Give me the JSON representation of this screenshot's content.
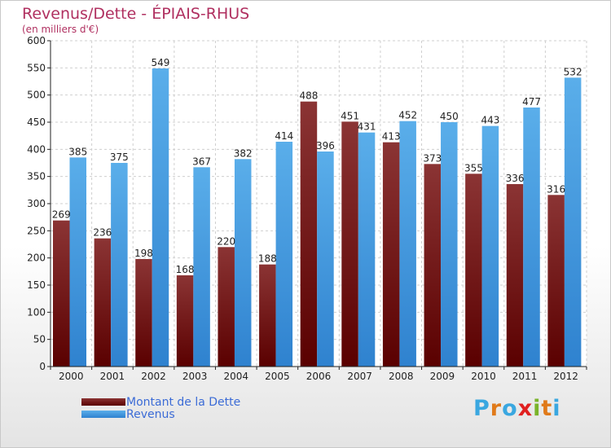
{
  "title": "Revenus/Dette - ÉPIAIS-RHUS",
  "subtitle": "(en milliers d'€)",
  "colors": {
    "dette": "#7a1a1a",
    "revenus": "#4fa3e3",
    "title": "#b03060"
  },
  "legend": {
    "dette": "Montant de la Dette",
    "revenus": "Revenus"
  },
  "logo": {
    "letters": [
      "P",
      "r",
      "o",
      "x",
      "i",
      "t",
      "i"
    ],
    "colors": [
      "#3aa7e0",
      "#e07a1a",
      "#3aa7e0",
      "#e02020",
      "#7ab32a",
      "#e07a1a",
      "#3aa7e0"
    ]
  },
  "chart_data": {
    "type": "bar",
    "categories": [
      "2000",
      "2001",
      "2002",
      "2003",
      "2004",
      "2005",
      "2006",
      "2007",
      "2008",
      "2009",
      "2010",
      "2011",
      "2012"
    ],
    "series": [
      {
        "name": "Montant de la Dette",
        "values": [
          269,
          236,
          198,
          168,
          220,
          188,
          488,
          451,
          413,
          373,
          355,
          336,
          316
        ]
      },
      {
        "name": "Revenus",
        "values": [
          385,
          375,
          549,
          367,
          382,
          414,
          396,
          431,
          452,
          450,
          443,
          477,
          532
        ]
      }
    ],
    "yticks": [
      0,
      50,
      100,
      150,
      200,
      250,
      300,
      350,
      400,
      450,
      500,
      550,
      600
    ],
    "ylim": [
      0,
      600
    ],
    "grid": true,
    "legend_position": "bottom-left"
  }
}
